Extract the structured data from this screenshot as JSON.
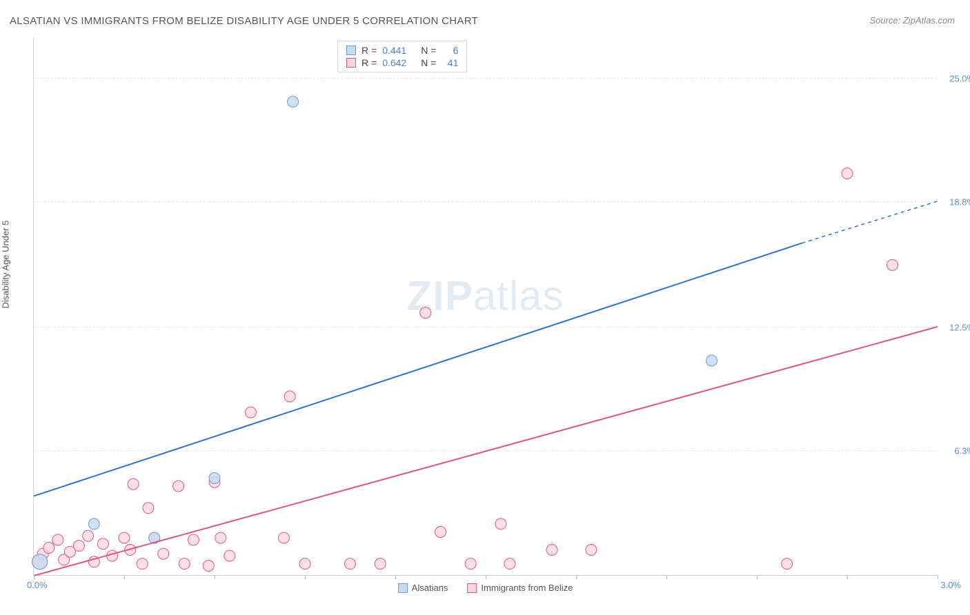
{
  "title": "ALSATIAN VS IMMIGRANTS FROM BELIZE DISABILITY AGE UNDER 5 CORRELATION CHART",
  "source": "Source: ZipAtlas.com",
  "y_axis_label": "Disability Age Under 5",
  "watermark": {
    "part1": "ZIP",
    "part2": "atlas"
  },
  "chart": {
    "type": "scatter",
    "background_color": "#ffffff",
    "grid_color": "#e5e5e5",
    "axis_color": "#d0d0d0",
    "xlim": [
      0.0,
      3.0
    ],
    "ylim": [
      0.0,
      27.0
    ],
    "x_start_label": "0.0%",
    "x_end_label": "3.0%",
    "x_tick_positions": [
      0.0,
      0.3,
      0.6,
      0.9,
      1.2,
      1.5,
      1.8,
      2.1,
      2.4,
      2.7,
      3.0
    ],
    "y_gridlines": [
      {
        "val": 6.3,
        "label": "6.3%"
      },
      {
        "val": 12.5,
        "label": "12.5%"
      },
      {
        "val": 18.8,
        "label": "18.8%"
      },
      {
        "val": 25.0,
        "label": "25.0%"
      }
    ],
    "series": [
      {
        "name": "Alsatians",
        "legend_label": "Alsatians",
        "R_label": "R =",
        "R_value": "0.441",
        "N_label": "N =",
        "N_value": "6",
        "fill_color": "#c9daf0",
        "stroke_color": "#6b9bd4",
        "line_color": "#2f6fd0",
        "marker_radius": 8,
        "marker_opacity": 0.85,
        "trend": {
          "x1": 0.0,
          "y1": 4.0,
          "x2": 2.55,
          "y2": 16.7,
          "dash_x2": 3.0,
          "dash_y2": 18.8
        },
        "points": [
          {
            "x": 0.02,
            "y": 0.7,
            "r": 11
          },
          {
            "x": 0.2,
            "y": 2.6
          },
          {
            "x": 0.4,
            "y": 1.9
          },
          {
            "x": 0.6,
            "y": 4.9
          },
          {
            "x": 0.86,
            "y": 23.8
          },
          {
            "x": 2.25,
            "y": 10.8
          }
        ]
      },
      {
        "name": "Immigrants from Belize",
        "legend_label": "Immigrants from Belize",
        "R_label": "R =",
        "R_value": "0.642",
        "N_label": "N =",
        "N_value": "41",
        "fill_color": "#f8d4df",
        "stroke_color": "#e0577e",
        "line_color": "#e0577e",
        "marker_radius": 8,
        "marker_opacity": 0.75,
        "trend": {
          "x1": 0.0,
          "y1": 0.0,
          "x2": 3.0,
          "y2": 12.5
        },
        "points": [
          {
            "x": 0.02,
            "y": 0.7,
            "r": 11
          },
          {
            "x": 0.03,
            "y": 1.1
          },
          {
            "x": 0.05,
            "y": 1.4
          },
          {
            "x": 0.08,
            "y": 1.8
          },
          {
            "x": 0.1,
            "y": 0.8
          },
          {
            "x": 0.12,
            "y": 1.2
          },
          {
            "x": 0.15,
            "y": 1.5
          },
          {
            "x": 0.18,
            "y": 2.0
          },
          {
            "x": 0.2,
            "y": 0.7
          },
          {
            "x": 0.23,
            "y": 1.6
          },
          {
            "x": 0.26,
            "y": 1.0
          },
          {
            "x": 0.3,
            "y": 1.9
          },
          {
            "x": 0.32,
            "y": 1.3
          },
          {
            "x": 0.33,
            "y": 4.6
          },
          {
            "x": 0.36,
            "y": 0.6
          },
          {
            "x": 0.38,
            "y": 3.4
          },
          {
            "x": 0.4,
            "y": 1.9
          },
          {
            "x": 0.43,
            "y": 1.1
          },
          {
            "x": 0.48,
            "y": 4.5
          },
          {
            "x": 0.5,
            "y": 0.6
          },
          {
            "x": 0.53,
            "y": 1.8
          },
          {
            "x": 0.58,
            "y": 0.5
          },
          {
            "x": 0.6,
            "y": 4.7
          },
          {
            "x": 0.62,
            "y": 1.9
          },
          {
            "x": 0.65,
            "y": 1.0
          },
          {
            "x": 0.72,
            "y": 8.2
          },
          {
            "x": 0.83,
            "y": 1.9
          },
          {
            "x": 0.85,
            "y": 9.0
          },
          {
            "x": 0.9,
            "y": 0.6
          },
          {
            "x": 1.05,
            "y": 0.6
          },
          {
            "x": 1.15,
            "y": 0.6
          },
          {
            "x": 1.3,
            "y": 13.2
          },
          {
            "x": 1.35,
            "y": 2.2
          },
          {
            "x": 1.45,
            "y": 0.6
          },
          {
            "x": 1.55,
            "y": 2.6
          },
          {
            "x": 1.58,
            "y": 0.6
          },
          {
            "x": 1.72,
            "y": 1.3
          },
          {
            "x": 1.85,
            "y": 1.3
          },
          {
            "x": 2.5,
            "y": 0.6
          },
          {
            "x": 2.7,
            "y": 20.2
          },
          {
            "x": 2.85,
            "y": 15.6
          }
        ]
      }
    ]
  }
}
